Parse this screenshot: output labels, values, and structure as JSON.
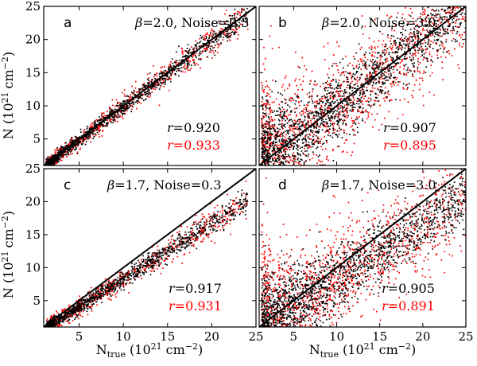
{
  "figure": {
    "ylabel": "N (10",
    "ylabel_exp": "21",
    "ylabel_unit": "cm",
    "ylabel_unit_exp": "−2",
    "ylabel_close": ")",
    "xlabel_main": "N",
    "xlabel_sub": "true",
    "xlabel_rest": "(10",
    "xlabel_exp": "21",
    "xlabel_unit": "cm",
    "xlabel_unit_exp": "−2",
    "xlabel_close": ")"
  },
  "colors": {
    "series_black": "#000000",
    "series_red": "#ff0000",
    "one_to_one_line": "#000000"
  },
  "chart_data": [
    {
      "type": "scatter",
      "panel": "a",
      "beta_label": "β",
      "beta_value": "=2.0, ",
      "noise_label": "Noise",
      "noise_value": "=0.3",
      "r_black_label": "r",
      "r_black_value": "=0.920",
      "r_red_label": "r",
      "r_red_value": "=0.933",
      "beta": 2.0,
      "noise": 0.3,
      "slope": 1.0,
      "xlim": [
        1,
        25
      ],
      "ylim": [
        1,
        25
      ],
      "xticks": [],
      "yticks": [
        "5",
        "10",
        "15",
        "20",
        "25"
      ],
      "series": [
        {
          "name": "black",
          "color": "#000000"
        },
        {
          "name": "red",
          "color": "#ff0000"
        }
      ],
      "one_to_one_line": true
    },
    {
      "type": "scatter",
      "panel": "b",
      "beta_label": "β",
      "beta_value": "=2.0, ",
      "noise_label": "Noise",
      "noise_value": "=3.0",
      "r_black_label": "r",
      "r_black_value": "=0.907",
      "r_red_label": "r",
      "r_red_value": "=0.895",
      "beta": 2.0,
      "noise": 3.0,
      "slope": 1.0,
      "xlim": [
        1,
        25
      ],
      "ylim": [
        1,
        25
      ],
      "xticks": [],
      "yticks": [],
      "series": [
        {
          "name": "black",
          "color": "#000000"
        },
        {
          "name": "red",
          "color": "#ff0000"
        }
      ],
      "one_to_one_line": true
    },
    {
      "type": "scatter",
      "panel": "c",
      "beta_label": "β",
      "beta_value": "=1.7, ",
      "noise_label": "Noise",
      "noise_value": "=0.3",
      "r_black_label": "r",
      "r_black_value": "=0.917",
      "r_red_label": "r",
      "r_red_value": "=0.931",
      "beta": 1.7,
      "noise": 0.3,
      "slope": 0.84,
      "xlim": [
        1,
        25
      ],
      "ylim": [
        1,
        25
      ],
      "xticks": [
        "5",
        "10",
        "15",
        "20",
        "25"
      ],
      "yticks": [
        "5",
        "10",
        "15",
        "20",
        "25"
      ],
      "series": [
        {
          "name": "black",
          "color": "#000000"
        },
        {
          "name": "red",
          "color": "#ff0000"
        }
      ],
      "one_to_one_line": true
    },
    {
      "type": "scatter",
      "panel": "d",
      "beta_label": "β",
      "beta_value": "=1.7, ",
      "noise_label": "Noise",
      "noise_value": "=3.0",
      "r_black_label": "r",
      "r_black_value": "=0.905",
      "r_red_label": "r",
      "r_red_value": "=0.891",
      "beta": 1.7,
      "noise": 3.0,
      "slope": 0.84,
      "xlim": [
        1,
        25
      ],
      "ylim": [
        1,
        25
      ],
      "xticks": [
        "5",
        "10",
        "15",
        "20",
        "25"
      ],
      "yticks": [],
      "series": [
        {
          "name": "black",
          "color": "#000000"
        },
        {
          "name": "red",
          "color": "#ff0000"
        }
      ],
      "one_to_one_line": true
    }
  ]
}
